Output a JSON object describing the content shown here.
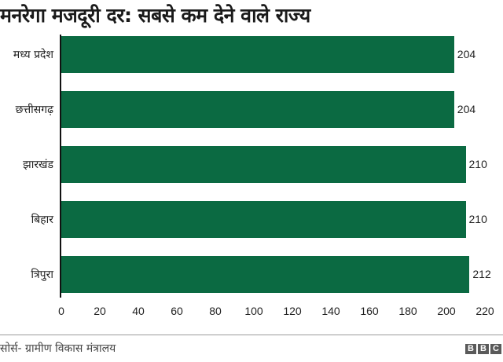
{
  "chart_data": {
    "type": "bar",
    "orientation": "horizontal",
    "title": "मनरेगा मजदूरी दर: सबसे कम देने वाले राज्य",
    "categories": [
      "मध्य प्रदेश",
      "छत्तीसगढ़",
      "झारखंड",
      "बिहार",
      "त्रिपुरा"
    ],
    "values": [
      204,
      204,
      210,
      210,
      212
    ],
    "xlabel": "",
    "ylabel": "",
    "xlim": [
      0,
      220
    ],
    "xticks": [
      "0",
      "20",
      "40",
      "60",
      "80",
      "100",
      "120",
      "140",
      "160",
      "180",
      "200",
      "220"
    ],
    "grid": false,
    "legend": null,
    "bar_color": "#0b6a42",
    "data_labels": [
      "204",
      "204",
      "210",
      "210",
      "212"
    ]
  },
  "footer": {
    "source": "सोर्स- ग्रामीण विकास मंत्रालय",
    "logo": [
      "B",
      "B",
      "C"
    ]
  }
}
